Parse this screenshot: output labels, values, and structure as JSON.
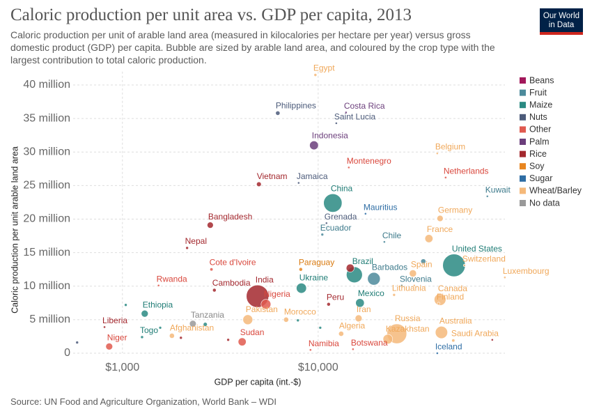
{
  "logo": [
    "Our World",
    "in Data"
  ],
  "chart_data": {
    "type": "scatter",
    "title": "Caloric production per unit area vs. GDP per capita, 2013",
    "subtitle": "Caloric production per unit of arable land area (measured in kilocalories per hectare per year) versus gross domestic product (GDP) per capita. Bubble are sized by arable land area, and coloured by the crop type with the largest contribution to total caloric production.",
    "xlabel": "GDP per capita (int.-$)",
    "ylabel": "Caloric production per unit arable land area",
    "source": "Source: UN Food and Agriculture Organization, World Bank – WDI",
    "xscale": "log",
    "xlim": [
      560,
      90000
    ],
    "ylim": [
      0,
      42000000
    ],
    "xticks": [
      {
        "value": 1000,
        "label": "$1,000"
      },
      {
        "value": 10000,
        "label": "$10,000"
      }
    ],
    "yticks": [
      0,
      {
        "value": 5000000,
        "label": "5 million"
      },
      {
        "value": 10000000,
        "label": "10 million"
      },
      {
        "value": 15000000,
        "label": "15 million"
      },
      {
        "value": 20000000,
        "label": "20 million"
      },
      {
        "value": 25000000,
        "label": "25 million"
      },
      {
        "value": 30000000,
        "label": "30 million"
      },
      {
        "value": 35000000,
        "label": "35 million"
      },
      {
        "value": 40000000,
        "label": "40 million"
      }
    ],
    "grid": true,
    "legend": "right",
    "series": [
      {
        "name": "Beans",
        "color": "#a2185b",
        "label_color": "#a2185b",
        "x": [],
        "values": [],
        "sizes": [],
        "labels": []
      },
      {
        "name": "Fruit",
        "color": "#4c8a9b",
        "label_color": "#3d7a8b",
        "x": [
          73200,
          10500,
          21790,
          19260,
          26730,
          34460
        ],
        "values": [
          23400000,
          17700000,
          16600000,
          11100000,
          10100000,
          13700000
        ],
        "sizes": [
          1.0,
          2.4,
          1.4,
          50,
          1.4,
          8
        ],
        "labels": [
          "Kuwait",
          "Ecuador",
          "Chile",
          "Barbados",
          "Slovenia",
          null
        ]
      },
      {
        "name": "Maize",
        "color": "#2a8a82",
        "label_color": "#1f7c75",
        "x": [
          11880,
          49430,
          15310,
          8210,
          16350,
          1300,
          1260,
          1040,
          1560,
          2650,
          7880,
          10250
        ],
        "values": [
          22400000,
          13100000,
          11700000,
          9700000,
          7500000,
          5900000,
          2400000,
          7200000,
          3800000,
          4300000,
          4900000,
          3800000
        ],
        "sizes": [
          106,
          160,
          80,
          32,
          23,
          15,
          2.6,
          2.4,
          2.4,
          5,
          2.4,
          2.4
        ],
        "labels": [
          "China",
          "United States",
          "Brazil",
          "Ukraine",
          "Mexico",
          "Ethiopia",
          "Togo",
          null,
          null,
          null,
          null,
          null
        ]
      },
      {
        "name": "Nuts",
        "color": "#4c5b7a",
        "label_color": "#4c5b7a",
        "x": [
          6220,
          12380,
          7950,
          11030,
          587
        ],
        "values": [
          35800000,
          34300000,
          25400000,
          19400000,
          1600000
        ],
        "sizes": [
          6,
          1.0,
          0.6,
          1.0,
          2.4
        ],
        "labels": [
          "Philippines",
          "Saint Lucia",
          "Jamaica",
          "Grenada",
          null
        ]
      },
      {
        "name": "Other",
        "color": "#e05a4f",
        "label_color": "#d9473c",
        "x": [
          14340,
          44800,
          2850,
          1530,
          5410,
          4090,
          856,
          9140,
          15070
        ],
        "values": [
          27700000,
          26200000,
          12500000,
          10100000,
          7300000,
          1700000,
          1000000,
          500000,
          600000
        ],
        "sizes": [
          0.6,
          1.2,
          3,
          1.2,
          30,
          20,
          15,
          1.0,
          0.6
        ],
        "labels": [
          "Montenegro",
          "Netherlands",
          "Cote d'Ivoire",
          "Rwanda",
          "Nigeria",
          "Sudan",
          "Niger",
          "Namibia",
          "Botswana"
        ]
      },
      {
        "name": "Palm",
        "color": "#6b3e7b",
        "label_color": "#6b3e7b",
        "x": [
          13880,
          9520
        ],
        "values": [
          35900000,
          31000000
        ],
        "sizes": [
          0.6,
          24
        ],
        "labels": [
          "Costa Rica",
          "Indonesia"
        ]
      },
      {
        "name": "Rice",
        "color": "#a3282e",
        "label_color": "#a3282e",
        "x": [
          4980,
          2810,
          2140,
          4900,
          2950,
          11310,
          810,
          14580,
          1990,
          3470,
          77560
        ],
        "values": [
          25200000,
          19100000,
          15700000,
          8500000,
          9400000,
          7300000,
          3900000,
          12700000,
          2300000,
          2000000,
          2000000
        ],
        "sizes": [
          7,
          12,
          2.4,
          157,
          4,
          4,
          1.0,
          20,
          2.4,
          2.4,
          1.0
        ],
        "labels": [
          "Vietnam",
          "Bangladesh",
          "Nepal",
          "India",
          "Cambodia",
          "Peru",
          "Liberia",
          null,
          null,
          null,
          null
        ]
      },
      {
        "name": "Soy",
        "color": "#e8851f",
        "label_color": "#d97a10",
        "x": [
          8150
        ],
        "values": [
          12500000
        ],
        "sizes": [
          4
        ],
        "labels": [
          "Paraguay"
        ]
      },
      {
        "name": "Sugar",
        "color": "#2e6da4",
        "label_color": "#2e6da4",
        "x": [
          17460,
          40600
        ],
        "values": [
          20800000,
          0
        ],
        "sizes": [
          0.6,
          0.6
        ],
        "labels": [
          "Mauritius",
          "Iceland"
        ]
      },
      {
        "name": "Wheat/Barley",
        "color": "#f5b97a",
        "label_color": "#f0a85a",
        "x": [
          9680,
          40600,
          41960,
          36800,
          55890,
          89900,
          30480,
          41960,
          24430,
          41280,
          16090,
          6860,
          4370,
          42650,
          1790,
          13110,
          25240,
          22700,
          49020,
          30980
        ],
        "values": [
          41500000,
          29800000,
          20100000,
          17100000,
          13100000,
          11300000,
          11900000,
          8000000,
          8700000,
          7400000,
          5200000,
          5000000,
          5000000,
          3100000,
          2600000,
          2900000,
          2900000,
          2100000,
          1900000,
          10100000
        ],
        "sizes": [
          2.6,
          1.0,
          12,
          20,
          0.6,
          0.6,
          16,
          43,
          2.4,
          2.4,
          15,
          8,
          30,
          47,
          8,
          8,
          122,
          29,
          3,
          1.2
        ],
        "labels": [
          "Egypt",
          "Belgium",
          "Germany",
          "France",
          "Switzerland",
          "Luxembourg",
          "Spain",
          "Canada",
          "Lithuania",
          "Finland",
          "Iran",
          "Morocco",
          "Pakistan",
          "Australia",
          "Afghanistan",
          "Algeria",
          "Russia",
          "Kazakhstan",
          "Saudi Arabia",
          null
        ]
      },
      {
        "name": "No data",
        "color": "#999999",
        "label_color": "#888888",
        "x": [
          2290
        ],
        "values": [
          4400000
        ],
        "sizes": [
          14
        ],
        "labels": [
          "Tanzania"
        ]
      }
    ]
  }
}
